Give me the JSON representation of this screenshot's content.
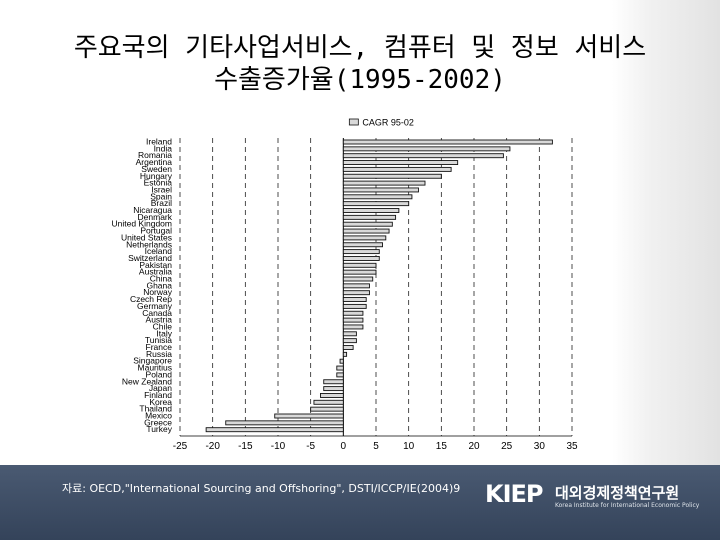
{
  "slide": {
    "title_line1": "주요국의 기타사업서비스, 컴퓨터 및 정보 서비스",
    "title_line2": "수출증가율(1995-2002)",
    "source": "자료: OECD,\"International Sourcing and Offshoring\", DSTI/ICCP/IE(2004)9"
  },
  "logo": {
    "mark": "KIEP",
    "name": "대외경제정책연구원",
    "subtitle": "Korea Institute for International Economic Policy"
  },
  "colors": {
    "footer": "#3d4c63",
    "bar": "#d9d9d9",
    "bar_edge": "#111111",
    "gridline": "#222222"
  },
  "chart_data": {
    "type": "bar",
    "orientation": "horizontal",
    "legend": [
      "CAGR 95-02"
    ],
    "legend_position": "top",
    "grid": "vertical dashed",
    "xlim": [
      -25,
      35
    ],
    "xticks": [
      -25,
      -20,
      -15,
      -10,
      -5,
      0,
      5,
      10,
      15,
      20,
      25,
      30,
      35
    ],
    "categories": [
      "Ireland",
      "India",
      "Romania",
      "Argentina",
      "Sweden",
      "Hungary",
      "Estonia",
      "Israel",
      "Spain",
      "Brazil",
      "Nicaragua",
      "Denmark",
      "United Kingdom",
      "Portugal",
      "United States",
      "Netherlands",
      "Iceland",
      "Switzerland",
      "Pakistan",
      "Australia",
      "China",
      "Ghana",
      "Norway",
      "Czech Rep",
      "Germany",
      "Canada",
      "Austria",
      "Chile",
      "Italy",
      "Tunisia",
      "France",
      "Russia",
      "Singapore",
      "Mauritius",
      "Poland",
      "New Zealand",
      "Japan",
      "Finland",
      "Korea",
      "Thailand",
      "Mexico",
      "Greece",
      "Turkey"
    ],
    "series": [
      {
        "name": "CAGR 95-02",
        "values": [
          32,
          25.5,
          24.5,
          17.5,
          16.5,
          15,
          12.5,
          11.5,
          10.5,
          10,
          8.5,
          8,
          7.5,
          7,
          6.5,
          6,
          5.5,
          5.5,
          5,
          5,
          4.5,
          4,
          4,
          3.5,
          3.5,
          3,
          3,
          3,
          2,
          2,
          1.5,
          0.5,
          -0.5,
          -1,
          -1,
          -3,
          -3,
          -3.5,
          -4.5,
          -5,
          -10.5,
          -18,
          -21
        ]
      }
    ]
  }
}
